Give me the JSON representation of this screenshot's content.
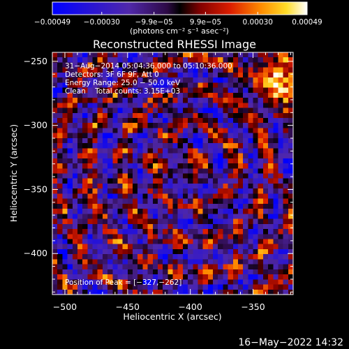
{
  "chart_data": {
    "type": "heatmap",
    "title": "Reconstructed RHESSI Image",
    "xlabel": "Heliocentric X (arcsec)",
    "ylabel": "Heliocentric Y (arcsec)",
    "xlim": [
      -510,
      -318
    ],
    "ylim": [
      -432,
      -243
    ],
    "x_ticks": [
      -500,
      -450,
      -400,
      -350
    ],
    "x_tick_labels": [
      "−500",
      "−450",
      "−400",
      "−350"
    ],
    "y_ticks": [
      -250,
      -300,
      -350,
      -400
    ],
    "y_tick_labels": [
      "−250",
      "−300",
      "−350",
      "−400"
    ],
    "colorbar": {
      "range": [
        -0.00049,
        0.00049
      ],
      "ticks": [
        -0.00049,
        -0.0003,
        -9.9e-05,
        9.9e-05,
        0.0003,
        0.00049
      ],
      "tick_labels": [
        "−0.00049",
        "−0.00030",
        "−9.9e−05",
        "9.9e−05",
        "0.00030",
        "0.00049"
      ],
      "units": "(photons cm⁻² s⁻¹ asec⁻²)"
    },
    "annotations": [
      "31−Aug−2014 05:04:36.000 to 05:10:36.000",
      "Detectors: 3F 6F 9F, Att 0",
      "Energy Range: 25.0 − 50.0 keV",
      "Clean    Total counts: 3.15E+03"
    ],
    "peak_label": "Position of Peak = [−327,−262]",
    "peak": [
      -327,
      -262
    ],
    "colors": {
      "background": "#000000",
      "text": "#ffffff"
    }
  },
  "footer": {
    "timestamp": "16−May−2022 14:32"
  }
}
